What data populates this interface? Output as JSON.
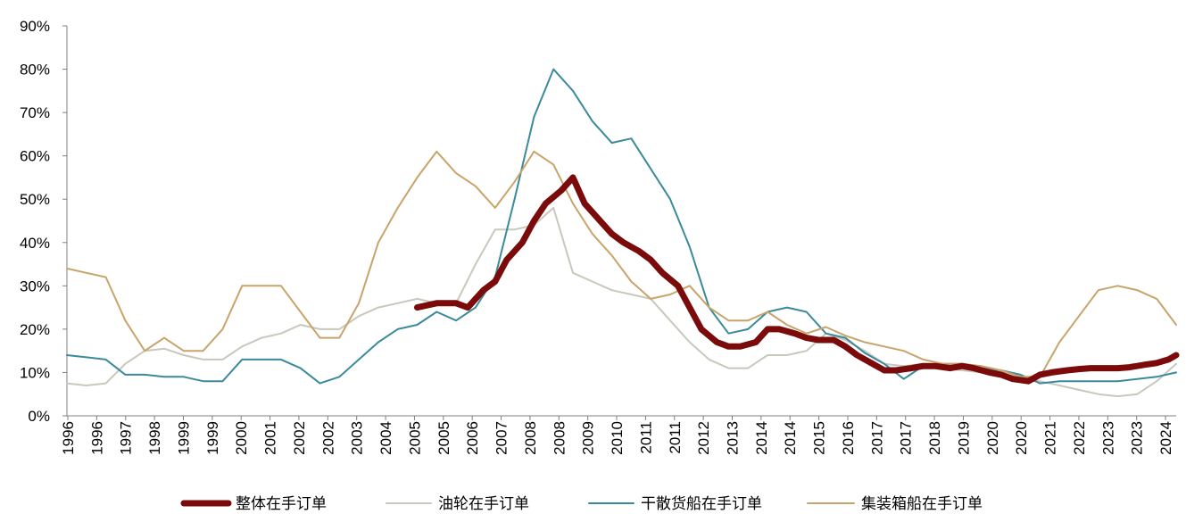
{
  "chart_data": {
    "type": "line",
    "title": "",
    "xlabel": "",
    "ylabel": "",
    "ylim": [
      0,
      90
    ],
    "y_ticks": [
      "0%",
      "10%",
      "20%",
      "30%",
      "40%",
      "50%",
      "60%",
      "70%",
      "80%",
      "90%"
    ],
    "x_tick_labels": [
      "1996",
      "1996",
      "1997",
      "1998",
      "1999",
      "1999",
      "2000",
      "2001",
      "2002",
      "2002",
      "2003",
      "2004",
      "2005",
      "2005",
      "2006",
      "2007",
      "2008",
      "2008",
      "2009",
      "2010",
      "2011",
      "2011",
      "2012",
      "2013",
      "2014",
      "2014",
      "2015",
      "2016",
      "2017",
      "2017",
      "2018",
      "2019",
      "2020",
      "2020",
      "2021",
      "2022",
      "2023",
      "2023",
      "2024"
    ],
    "grid": false,
    "legend_position": "bottom",
    "series": [
      {
        "name": "整体在手订单",
        "color": "#7b0a0a",
        "x": [
          2005.0,
          2005.5,
          2006.0,
          2006.3,
          2006.7,
          2007.0,
          2007.3,
          2007.7,
          2008.0,
          2008.3,
          2008.7,
          2009.0,
          2009.3,
          2009.7,
          2010.0,
          2010.3,
          2010.7,
          2011.0,
          2011.3,
          2011.7,
          2012.0,
          2012.3,
          2012.7,
          2013.0,
          2013.3,
          2013.7,
          2014.0,
          2014.3,
          2014.7,
          2015.0,
          2015.3,
          2015.7,
          2016.0,
          2016.3,
          2016.7,
          2017.0,
          2017.3,
          2017.7,
          2018.0,
          2018.3,
          2018.7,
          2019.0,
          2019.3,
          2019.7,
          2020.0,
          2020.3,
          2020.7,
          2021.0,
          2021.3,
          2021.7,
          2022.0,
          2022.3,
          2022.7,
          2023.0,
          2023.3,
          2023.7,
          2024.0,
          2024.3,
          2024.5
        ],
        "values": [
          25,
          26,
          26,
          25,
          29,
          31,
          36,
          40,
          45,
          49,
          52,
          55,
          49,
          45,
          42,
          40,
          38,
          36,
          33,
          30,
          25,
          20,
          17,
          16,
          16,
          17,
          20,
          20,
          19,
          18,
          17.5,
          17.5,
          16,
          14,
          12,
          10.5,
          10.5,
          11,
          11.5,
          11.5,
          11,
          11.5,
          11,
          10,
          9.5,
          8.5,
          8,
          9.5,
          10,
          10.5,
          10.8,
          11,
          11,
          11,
          11.2,
          11.8,
          12.2,
          13,
          14
        ]
      },
      {
        "name": "油轮在手订单",
        "color": "#c8c8bc",
        "x": [
          1996.0,
          1996.5,
          1997.0,
          1997.5,
          1998.0,
          1998.5,
          1999.0,
          1999.5,
          2000.0,
          2000.5,
          2001.0,
          2001.5,
          2002.0,
          2002.5,
          2003.0,
          2003.5,
          2004.0,
          2004.5,
          2005.0,
          2005.5,
          2006.0,
          2006.5,
          2007.0,
          2007.5,
          2008.0,
          2008.5,
          2009.0,
          2009.5,
          2010.0,
          2010.5,
          2011.0,
          2011.5,
          2012.0,
          2012.5,
          2013.0,
          2013.5,
          2014.0,
          2014.5,
          2015.0,
          2015.5,
          2016.0,
          2016.5,
          2017.0,
          2017.5,
          2018.0,
          2018.5,
          2019.0,
          2019.5,
          2020.0,
          2020.5,
          2021.0,
          2021.5,
          2022.0,
          2022.5,
          2023.0,
          2023.5,
          2024.0,
          2024.5
        ],
        "values": [
          7.5,
          7,
          7.5,
          12,
          15,
          15.5,
          14,
          13,
          13,
          16,
          18,
          19,
          21,
          20,
          20,
          23,
          25,
          26,
          27,
          26,
          26,
          35,
          43,
          43,
          44,
          48,
          33,
          31,
          29,
          28,
          27,
          22,
          17,
          13,
          11,
          11,
          14,
          14,
          15,
          19,
          17.5,
          15,
          12,
          11.5,
          12,
          11,
          10.5,
          10,
          9.5,
          9,
          8,
          7,
          6,
          5,
          4.5,
          5,
          8,
          12
        ]
      },
      {
        "name": "干散货船在手订单",
        "color": "#3b8a9b",
        "x": [
          1996.0,
          1996.5,
          1997.0,
          1997.5,
          1998.0,
          1998.5,
          1999.0,
          1999.5,
          2000.0,
          2000.5,
          2001.0,
          2001.5,
          2002.0,
          2002.5,
          2003.0,
          2003.5,
          2004.0,
          2004.5,
          2005.0,
          2005.5,
          2006.0,
          2006.5,
          2007.0,
          2007.5,
          2008.0,
          2008.5,
          2009.0,
          2009.5,
          2010.0,
          2010.5,
          2011.0,
          2011.5,
          2012.0,
          2012.5,
          2013.0,
          2013.5,
          2014.0,
          2014.5,
          2015.0,
          2015.5,
          2016.0,
          2016.5,
          2017.0,
          2017.5,
          2018.0,
          2018.5,
          2019.0,
          2019.5,
          2020.0,
          2020.5,
          2021.0,
          2021.5,
          2022.0,
          2022.5,
          2023.0,
          2023.5,
          2024.0,
          2024.5
        ],
        "values": [
          14,
          13.5,
          13,
          9.5,
          9.5,
          9,
          9,
          8,
          8,
          13,
          13,
          13,
          11,
          7.5,
          9,
          13,
          17,
          20,
          21,
          24,
          22,
          25,
          32,
          50,
          69,
          80,
          75,
          68,
          63,
          64,
          57,
          50,
          39,
          25,
          19,
          20,
          24,
          25,
          24,
          19,
          18,
          14.5,
          12,
          8.5,
          11.5,
          12,
          12,
          11,
          10.5,
          9.5,
          7.5,
          8,
          8,
          8,
          8,
          8.5,
          9,
          10
        ]
      },
      {
        "name": "集装箱船在手订单",
        "color": "#c9a46a",
        "x": [
          1996.0,
          1996.5,
          1997.0,
          1997.5,
          1998.0,
          1998.5,
          1999.0,
          1999.5,
          2000.0,
          2000.5,
          2001.0,
          2001.5,
          2002.0,
          2002.5,
          2003.0,
          2003.5,
          2004.0,
          2004.5,
          2005.0,
          2005.5,
          2006.0,
          2006.5,
          2007.0,
          2007.5,
          2008.0,
          2008.5,
          2009.0,
          2009.5,
          2010.0,
          2010.5,
          2011.0,
          2011.5,
          2012.0,
          2012.5,
          2013.0,
          2013.5,
          2014.0,
          2014.5,
          2015.0,
          2015.5,
          2016.0,
          2016.5,
          2017.0,
          2017.5,
          2018.0,
          2018.5,
          2019.0,
          2019.5,
          2020.0,
          2020.5,
          2021.0,
          2021.5,
          2022.0,
          2022.5,
          2023.0,
          2023.5,
          2024.0,
          2024.5
        ],
        "values": [
          34,
          33,
          32,
          22,
          15,
          18,
          15,
          15,
          20,
          30,
          30,
          30,
          24,
          18,
          18,
          26,
          40,
          48,
          55,
          61,
          56,
          53,
          48,
          54,
          61,
          58,
          49,
          42,
          37,
          31,
          27,
          28,
          30,
          25,
          22,
          22,
          24,
          21,
          19,
          20.5,
          18.5,
          17,
          16,
          15,
          13,
          12,
          12,
          11.5,
          10.5,
          9,
          9,
          17,
          23,
          29,
          30,
          29,
          27,
          21
        ]
      }
    ]
  }
}
